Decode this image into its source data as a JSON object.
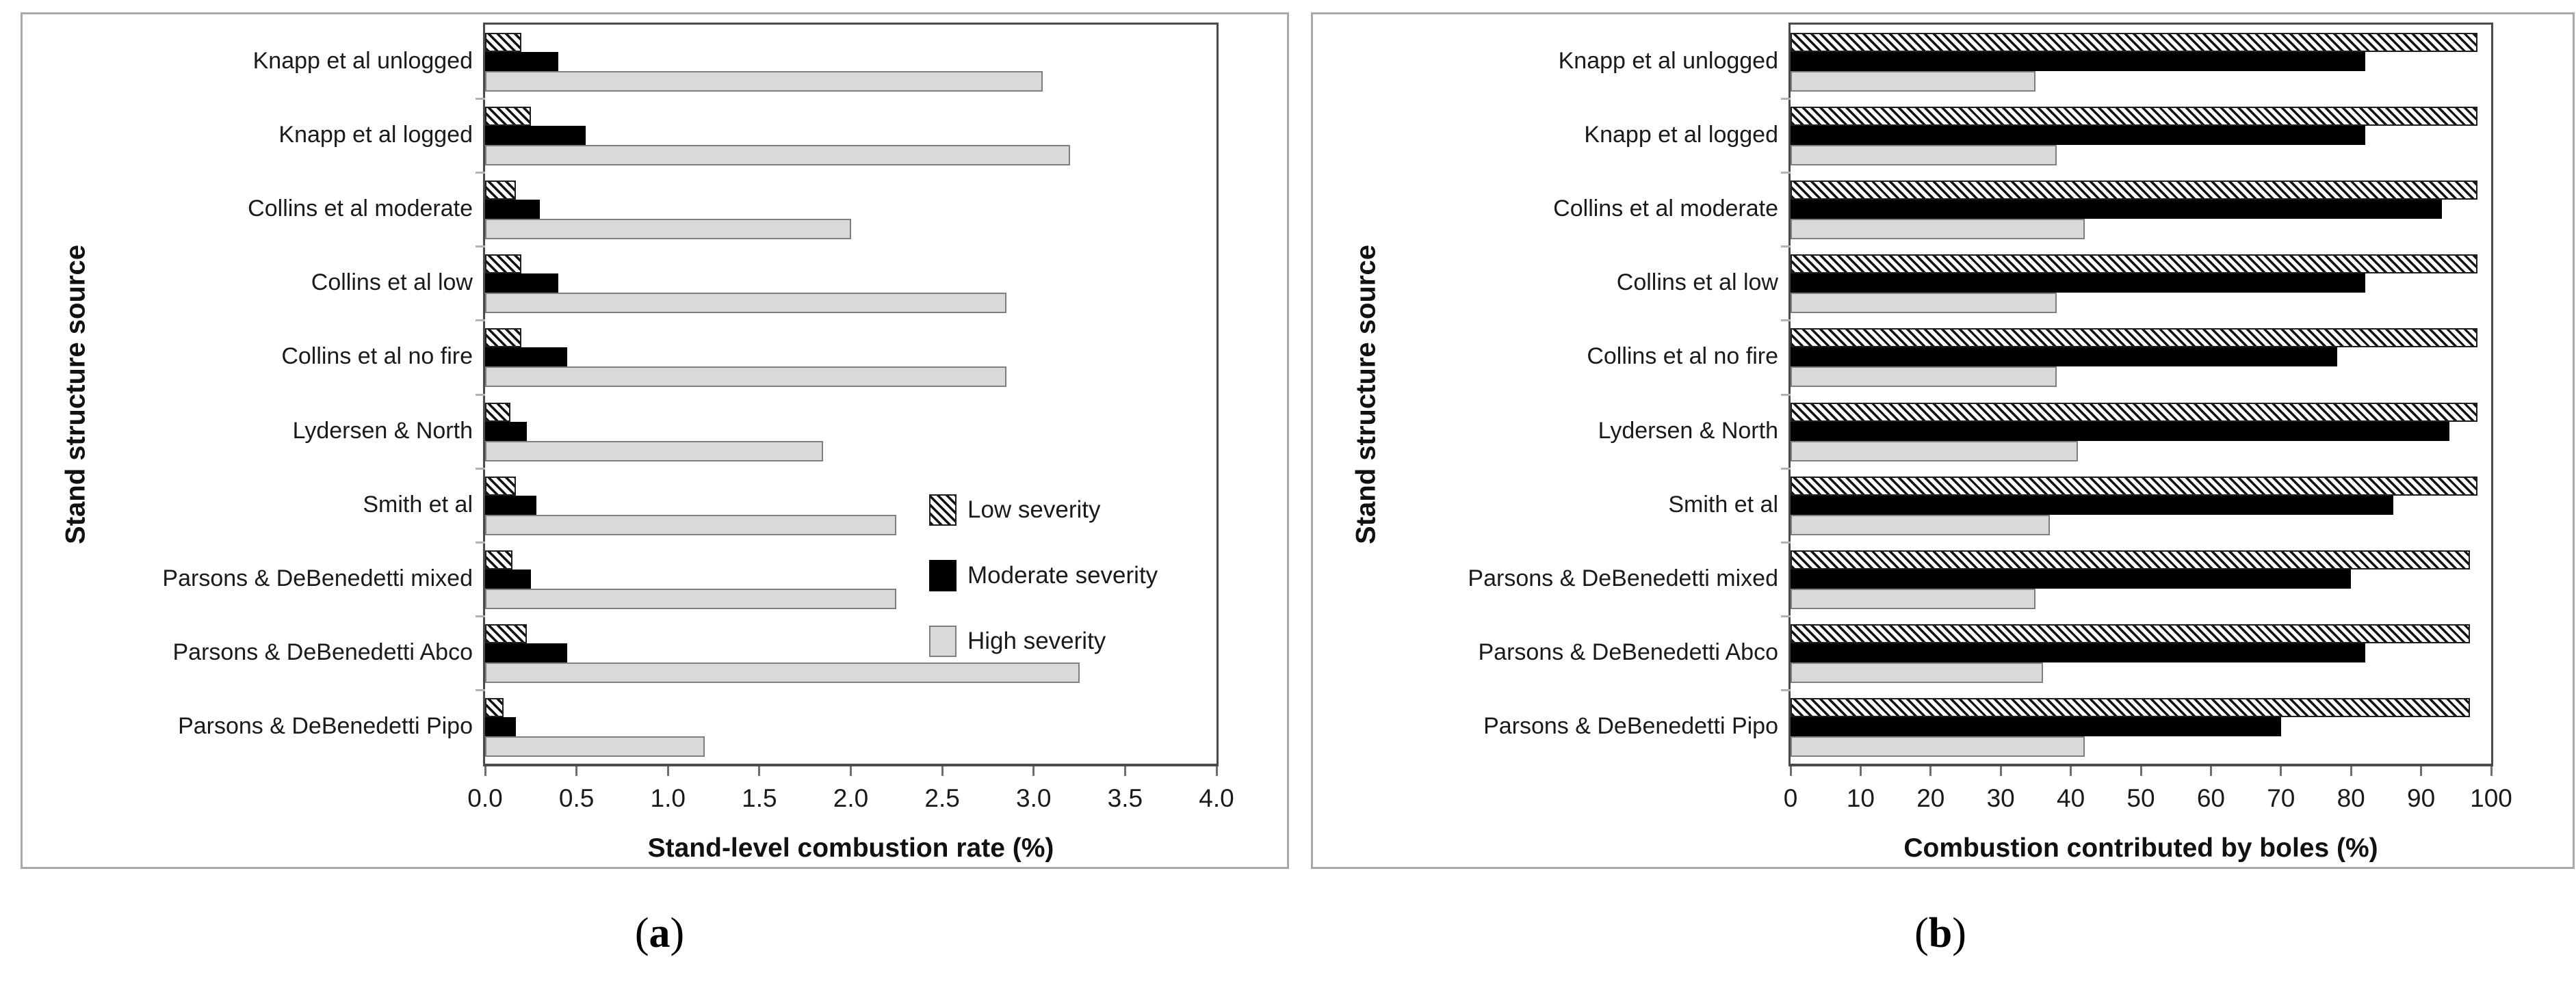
{
  "figure": {
    "background": "#ffffff",
    "panel_border_color": "#a9a9a9",
    "plot_border_color": "#4a4a4a"
  },
  "captions": {
    "open": "(",
    "a": "a",
    "b": "b",
    "close": ")"
  },
  "colors": {
    "low_severity_pattern": "black diagonal hatch on white",
    "moderate_severity": "#000000",
    "high_severity_fill": "#d9d9d9",
    "high_severity_border": "#7f7f7f"
  },
  "chart_data": [
    {
      "id": "a",
      "type": "bar",
      "orientation": "horizontal",
      "xlabel": "Stand-level combustion rate (%)",
      "ylabel": "Stand structure source",
      "xlim": [
        0,
        4.0
      ],
      "xtick_labels": [
        "0.0",
        "0.5",
        "1.0",
        "1.5",
        "2.0",
        "2.5",
        "3.0",
        "3.5",
        "4.0"
      ],
      "grid": false,
      "legend_visible": true,
      "legend_position": "inside right, lower middle",
      "categories": [
        "Knapp et al unlogged",
        "Knapp et al logged",
        "Collins et al moderate",
        "Collins et al low",
        "Collins et al no fire",
        "Lydersen & North",
        "Smith et al",
        "Parsons & DeBenedetti mixed",
        "Parsons & DeBenedetti Abco",
        "Parsons & DeBenedetti Pipo"
      ],
      "series": [
        {
          "name": "Low severity",
          "style": "hatch",
          "values": [
            0.2,
            0.25,
            0.17,
            0.2,
            0.2,
            0.14,
            0.17,
            0.15,
            0.23,
            0.1
          ]
        },
        {
          "name": "Moderate severity",
          "style": "black",
          "values": [
            0.4,
            0.55,
            0.3,
            0.4,
            0.45,
            0.23,
            0.28,
            0.25,
            0.45,
            0.17
          ]
        },
        {
          "name": "High severity",
          "style": "gray",
          "values": [
            3.05,
            3.2,
            2.0,
            2.85,
            2.85,
            1.85,
            2.25,
            2.25,
            3.25,
            1.2
          ]
        }
      ]
    },
    {
      "id": "b",
      "type": "bar",
      "orientation": "horizontal",
      "xlabel": "Combustion contributed by boles (%)",
      "ylabel": "Stand structure source",
      "xlim": [
        0,
        100
      ],
      "xtick_labels": [
        "0",
        "10",
        "20",
        "30",
        "40",
        "50",
        "60",
        "70",
        "80",
        "90",
        "100"
      ],
      "grid": false,
      "legend_visible": false,
      "categories": [
        "Knapp et al unlogged",
        "Knapp et al logged",
        "Collins et al moderate",
        "Collins et al low",
        "Collins et al no fire",
        "Lydersen & North",
        "Smith et al",
        "Parsons & DeBenedetti mixed",
        "Parsons & DeBenedetti Abco",
        "Parsons & DeBenedetti Pipo"
      ],
      "series": [
        {
          "name": "Low severity",
          "style": "hatch",
          "values": [
            98,
            98,
            98,
            98,
            98,
            98,
            98,
            97,
            97,
            97
          ]
        },
        {
          "name": "Moderate severity",
          "style": "black",
          "values": [
            82,
            82,
            93,
            82,
            78,
            94,
            86,
            80,
            82,
            70
          ]
        },
        {
          "name": "High severity",
          "style": "gray",
          "values": [
            35,
            38,
            42,
            38,
            38,
            41,
            37,
            35,
            36,
            42
          ]
        }
      ]
    }
  ]
}
